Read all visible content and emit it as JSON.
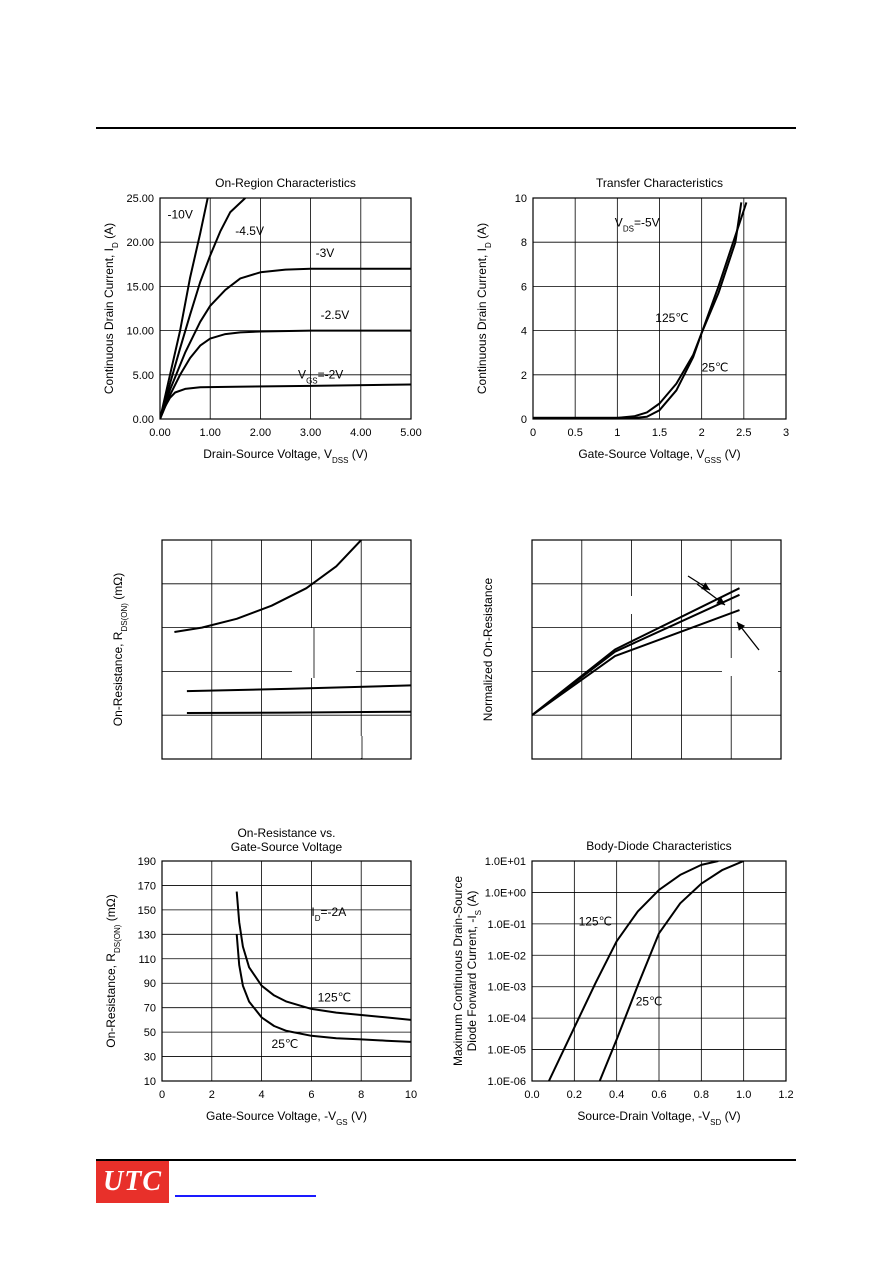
{
  "colors": {
    "ink": "#000000",
    "grid": "#000000",
    "logo_bg": "#e8302a",
    "logo_text": "#ffffff",
    "link": "#1a1aff"
  },
  "footer": {
    "logo_text": "UTC"
  },
  "chart_data": [
    {
      "id": "on_region",
      "type": "line",
      "title": "On-Region Characteristics",
      "xlabel": "Drain-Source Voltage, V",
      "xlabel_sub": "DSS",
      "xlabel_tail": " (V)",
      "ylabel": "Continuous Drain Current, I",
      "ylabel_sub": "D",
      "ylabel_tail": " (A)",
      "xlim": [
        0,
        5
      ],
      "ylim": [
        0,
        25
      ],
      "xticks": [
        "0.00",
        "1.00",
        "2.00",
        "3.00",
        "4.00",
        "5.00"
      ],
      "yticks": [
        "0.00",
        "5.00",
        "10.00",
        "15.00",
        "20.00",
        "25.00"
      ],
      "grid": true,
      "series": [
        {
          "name": "-10V",
          "points": [
            [
              0,
              0
            ],
            [
              0.2,
              5
            ],
            [
              0.4,
              10
            ],
            [
              0.6,
              16
            ],
            [
              0.8,
              21
            ],
            [
              0.95,
              25
            ]
          ]
        },
        {
          "name": "-4.5V",
          "points": [
            [
              0,
              0
            ],
            [
              0.2,
              4
            ],
            [
              0.4,
              8
            ],
            [
              0.6,
              11.8
            ],
            [
              0.8,
              15.5
            ],
            [
              1.0,
              18.5
            ],
            [
              1.2,
              21.2
            ],
            [
              1.4,
              23.4
            ],
            [
              1.7,
              25
            ]
          ]
        },
        {
          "name": "-3V",
          "points": [
            [
              0,
              0
            ],
            [
              0.2,
              3.3
            ],
            [
              0.5,
              7.5
            ],
            [
              0.8,
              11
            ],
            [
              1.0,
              12.8
            ],
            [
              1.3,
              14.6
            ],
            [
              1.6,
              15.9
            ],
            [
              2.0,
              16.6
            ],
            [
              2.5,
              16.9
            ],
            [
              3.0,
              17.0
            ],
            [
              4.0,
              17.0
            ],
            [
              5.0,
              17.0
            ]
          ]
        },
        {
          "name": "-2.5V",
          "points": [
            [
              0,
              0
            ],
            [
              0.2,
              2.7
            ],
            [
              0.4,
              5
            ],
            [
              0.6,
              6.9
            ],
            [
              0.8,
              8.3
            ],
            [
              1.0,
              9.1
            ],
            [
              1.3,
              9.6
            ],
            [
              1.6,
              9.8
            ],
            [
              2.0,
              9.9
            ],
            [
              3.0,
              10.0
            ],
            [
              5.0,
              10.0
            ]
          ]
        },
        {
          "name": "V",
          "points": [
            [
              0,
              0
            ],
            [
              0.1,
              1.4
            ],
            [
              0.2,
              2.4
            ],
            [
              0.3,
              3.0
            ],
            [
              0.5,
              3.4
            ],
            [
              0.8,
              3.6
            ],
            [
              1.5,
              3.65
            ],
            [
              3.0,
              3.75
            ],
            [
              5.0,
              3.9
            ]
          ]
        }
      ],
      "annotations": [
        {
          "text": "-10V",
          "x": 0.15,
          "y": 22.7
        },
        {
          "text": "-4.5V",
          "x": 1.5,
          "y": 20.8
        },
        {
          "text": "-3V",
          "x": 3.1,
          "y": 18.3
        },
        {
          "text": "-2.5V",
          "x": 3.2,
          "y": 11.3
        },
        {
          "text": "V",
          "sub": "GS",
          "tail": "=-2V",
          "x": 2.75,
          "y": 4.6
        }
      ]
    },
    {
      "id": "transfer",
      "type": "line",
      "title": "Transfer Characteristics",
      "xlabel": "Gate-Source Voltage, V",
      "xlabel_sub": "GSS",
      "xlabel_tail": " (V)",
      "ylabel": "Continuous Drain Current, I",
      "ylabel_sub": "D",
      "ylabel_tail": " (A)",
      "xlim": [
        0,
        3
      ],
      "ylim": [
        0,
        10
      ],
      "xticks": [
        "0",
        "0.5",
        "1",
        "1.5",
        "2",
        "2.5",
        "3"
      ],
      "yticks": [
        "0",
        "2",
        "4",
        "6",
        "8",
        "10"
      ],
      "grid": true,
      "series": [
        {
          "name": "125℃",
          "points": [
            [
              0,
              0.05
            ],
            [
              1.0,
              0.05
            ],
            [
              1.2,
              0.12
            ],
            [
              1.35,
              0.3
            ],
            [
              1.5,
              0.7
            ],
            [
              1.7,
              1.6
            ],
            [
              1.9,
              2.9
            ],
            [
              2.0,
              3.9
            ],
            [
              2.2,
              5.7
            ],
            [
              2.4,
              8.0
            ],
            [
              2.47,
              9.8
            ]
          ]
        },
        {
          "name": "25℃",
          "points": [
            [
              0,
              0.05
            ],
            [
              1.2,
              0.05
            ],
            [
              1.35,
              0.1
            ],
            [
              1.5,
              0.4
            ],
            [
              1.7,
              1.3
            ],
            [
              1.9,
              2.8
            ],
            [
              2.0,
              3.9
            ],
            [
              2.2,
              6.0
            ],
            [
              2.4,
              8.3
            ],
            [
              2.53,
              9.8
            ]
          ]
        }
      ],
      "annotations": [
        {
          "text": "V",
          "sub": "DS",
          "tail": "=-5V",
          "x": 0.97,
          "y": 8.7
        },
        {
          "text": "125℃",
          "x": 1.45,
          "y": 4.4
        },
        {
          "text": "25℃",
          "x": 2.0,
          "y": 2.15
        }
      ]
    },
    {
      "id": "on_resistance_vs_current",
      "type": "line",
      "ylabel": "On-Resistance, R",
      "ylabel_sub": "DS(ON)",
      "ylabel_tail": " (mΩ)",
      "xlim": [
        0,
        5
      ],
      "ylim": [
        0,
        5
      ],
      "grid": true,
      "series": [
        {
          "name": "",
          "points": [
            [
              0.25,
              2.9
            ],
            [
              0.8,
              3.0
            ],
            [
              1.5,
              3.2
            ],
            [
              2.2,
              3.5
            ],
            [
              2.9,
              3.9
            ],
            [
              3.5,
              4.4
            ],
            [
              4.0,
              5.0
            ]
          ]
        },
        {
          "name": "",
          "points": [
            [
              0.5,
              1.55
            ],
            [
              2.5,
              1.6
            ],
            [
              5.0,
              1.68
            ]
          ]
        },
        {
          "name": "",
          "points": [
            [
              0.5,
              1.05
            ],
            [
              2.5,
              1.06
            ],
            [
              5.0,
              1.08
            ]
          ]
        }
      ]
    },
    {
      "id": "normalized_on_resistance",
      "type": "line",
      "ylabel": "Normalized On-Resistance",
      "xlim": [
        0,
        6
      ],
      "ylim": [
        0,
        5
      ],
      "grid": true,
      "series": [
        {
          "name": "",
          "points": [
            [
              0,
              1.0
            ],
            [
              2,
              2.5
            ],
            [
              5,
              3.9
            ]
          ]
        },
        {
          "name": "",
          "points": [
            [
              0,
              1.0
            ],
            [
              2,
              2.45
            ],
            [
              5,
              3.75
            ]
          ]
        },
        {
          "name": "",
          "points": [
            [
              0,
              1.0
            ],
            [
              2,
              2.35
            ],
            [
              5,
              3.4
            ]
          ]
        }
      ]
    },
    {
      "id": "on_resistance_vs_vgs",
      "type": "line",
      "title": "On-Resistance vs.",
      "title2": "Gate-Source Voltage",
      "xlabel": "Gate-Source Voltage, -V",
      "xlabel_sub": "GS",
      "xlabel_tail": " (V)",
      "ylabel": "On-Resistance, R",
      "ylabel_sub": "DS(ON)",
      "ylabel_tail": " (mΩ)",
      "xlim": [
        0,
        10
      ],
      "ylim": [
        10,
        190
      ],
      "xticks": [
        "0",
        "2",
        "4",
        "6",
        "8",
        "10"
      ],
      "yticks": [
        "10",
        "30",
        "50",
        "70",
        "90",
        "110",
        "130",
        "150",
        "170",
        "190"
      ],
      "grid": true,
      "series": [
        {
          "name": "125℃",
          "points": [
            [
              3.0,
              165
            ],
            [
              3.1,
              140
            ],
            [
              3.25,
              120
            ],
            [
              3.5,
              103
            ],
            [
              4.0,
              88
            ],
            [
              4.5,
              80
            ],
            [
              5.0,
              75
            ],
            [
              6.0,
              69
            ],
            [
              7.0,
              66
            ],
            [
              8.0,
              64
            ],
            [
              9.0,
              62
            ],
            [
              10.0,
              60
            ]
          ]
        },
        {
          "name": "25℃",
          "points": [
            [
              3.0,
              130
            ],
            [
              3.1,
              105
            ],
            [
              3.25,
              88
            ],
            [
              3.5,
              75
            ],
            [
              4.0,
              62
            ],
            [
              4.5,
              55
            ],
            [
              5.0,
              51
            ],
            [
              6.0,
              47
            ],
            [
              7.0,
              45
            ],
            [
              8.0,
              44
            ],
            [
              9.0,
              43
            ],
            [
              10.0,
              42
            ]
          ]
        }
      ],
      "annotations": [
        {
          "text": "I",
          "sub": "D",
          "tail": "=-2A",
          "x": 6.0,
          "y": 145
        },
        {
          "text": "125℃",
          "x": 6.25,
          "y": 75
        },
        {
          "text": "25℃",
          "x": 4.4,
          "y": 37
        }
      ]
    },
    {
      "id": "body_diode",
      "type": "line",
      "scale": "log-y",
      "title": "Body-Diode Characteristics",
      "xlabel": "Source-Drain Voltage, -V",
      "xlabel_sub": "SD",
      "xlabel_tail": " (V)",
      "ylabel": "Maximum Continuous Drain-Source",
      "ylabel2": "Diode Forward Current, -I",
      "ylabel2_sub": "S",
      "ylabel2_tail": " (A)",
      "xlim": [
        0,
        1.2
      ],
      "ylim_exp": [
        -6,
        1
      ],
      "xticks": [
        "0.0",
        "0.2",
        "0.4",
        "0.6",
        "0.8",
        "1.0",
        "1.2"
      ],
      "yticks": [
        "1.0E-06",
        "1.0E-05",
        "1.0E-04",
        "1.0E-03",
        "1.0E-02",
        "1.0E-01",
        "1.0E+00",
        "1.0E+01"
      ],
      "grid": true,
      "series": [
        {
          "name": "125℃",
          "points": [
            [
              0.08,
              1e-06
            ],
            [
              0.2,
              5e-05
            ],
            [
              0.3,
              0.0013
            ],
            [
              0.4,
              0.028
            ],
            [
              0.5,
              0.25
            ],
            [
              0.6,
              1.2
            ],
            [
              0.7,
              3.6
            ],
            [
              0.8,
              7.5
            ],
            [
              0.88,
              10
            ]
          ]
        },
        {
          "name": "25℃",
          "points": [
            [
              0.32,
              1e-06
            ],
            [
              0.4,
              2.1e-05
            ],
            [
              0.5,
              0.0011
            ],
            [
              0.6,
              0.05
            ],
            [
              0.7,
              0.45
            ],
            [
              0.8,
              1.9
            ],
            [
              0.9,
              5.2
            ],
            [
              1.0,
              10
            ]
          ]
        }
      ],
      "annotations": [
        {
          "text": "125℃",
          "x": 0.22,
          "y": 0.09
        },
        {
          "text": "25℃",
          "x": 0.49,
          "y": 0.00025
        }
      ]
    }
  ]
}
